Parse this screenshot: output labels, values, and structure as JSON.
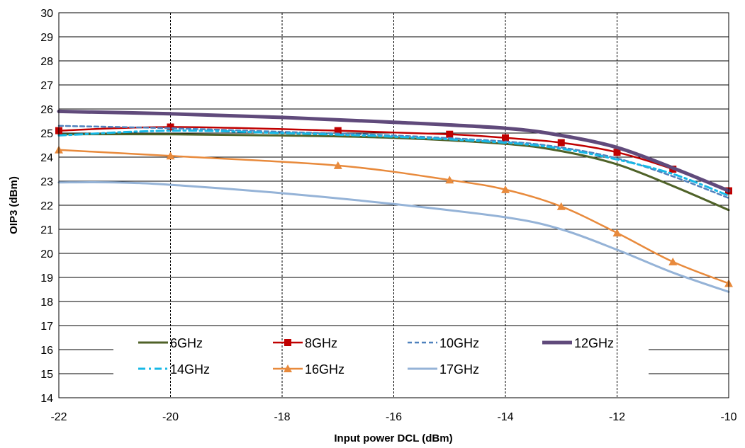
{
  "chart_data": {
    "type": "line",
    "xlabel": "Input power DCL  (dBm)",
    "ylabel": "OIP3  (dBm)",
    "xlim": [
      -22,
      -10
    ],
    "ylim": [
      14,
      30
    ],
    "x_ticks": [
      "-22",
      "-20",
      "-18",
      "-16",
      "-14",
      "-12",
      "-10"
    ],
    "y_ticks": [
      "14",
      "15",
      "16",
      "17",
      "18",
      "19",
      "20",
      "21",
      "22",
      "23",
      "24",
      "25",
      "26",
      "27",
      "28",
      "29",
      "30"
    ],
    "grid": {
      "horizontal": "solid",
      "vertical": "dashed"
    },
    "legend_position": "bottom-inside",
    "series": [
      {
        "name": "6GHz",
        "color": "#4f6228",
        "style": "solid",
        "marker": "none",
        "width": 3,
        "x": [
          -22,
          -20,
          -18,
          -16,
          -14,
          -13,
          -12,
          -11,
          -10
        ],
        "y": [
          24.95,
          24.95,
          24.9,
          24.8,
          24.55,
          24.25,
          23.7,
          22.8,
          21.8
        ]
      },
      {
        "name": "8GHz",
        "color": "#c00000",
        "style": "solid",
        "marker": "square",
        "width": 2.5,
        "x": [
          -22,
          -20,
          -17,
          -15,
          -14,
          -13,
          -12,
          -11,
          -10
        ],
        "y": [
          25.1,
          25.25,
          25.1,
          24.95,
          24.8,
          24.6,
          24.2,
          23.5,
          22.6
        ]
      },
      {
        "name": "10GHz",
        "color": "#4f81bd",
        "style": "dashed",
        "marker": "none",
        "width": 2.5,
        "x": [
          -22,
          -20,
          -18,
          -16,
          -14,
          -13,
          -12,
          -11,
          -10
        ],
        "y": [
          25.3,
          25.2,
          25.05,
          24.9,
          24.65,
          24.4,
          23.95,
          23.2,
          22.3
        ]
      },
      {
        "name": "12GHz",
        "color": "#604a7b",
        "style": "solid",
        "marker": "none",
        "width": 5,
        "x": [
          -22,
          -20,
          -18,
          -16,
          -14,
          -13,
          -12,
          -11,
          -10
        ],
        "y": [
          25.9,
          25.8,
          25.65,
          25.45,
          25.2,
          24.9,
          24.4,
          23.55,
          22.6
        ]
      },
      {
        "name": "14GHz",
        "color": "#17b8e6",
        "style": "dashdot",
        "marker": "none",
        "width": 3,
        "x": [
          -22,
          -20,
          -18,
          -16,
          -14,
          -13,
          -12,
          -11,
          -10
        ],
        "y": [
          24.9,
          25.1,
          25.0,
          24.85,
          24.6,
          24.35,
          23.9,
          23.3,
          22.4
        ]
      },
      {
        "name": "16GHz",
        "color": "#e88a3c",
        "style": "solid",
        "marker": "triangle",
        "width": 2.5,
        "x": [
          -22,
          -20,
          -17,
          -15,
          -14,
          -13,
          -12,
          -11,
          -10
        ],
        "y": [
          24.3,
          24.05,
          23.65,
          23.05,
          22.65,
          21.95,
          20.85,
          19.65,
          18.75
        ]
      },
      {
        "name": "17GHz",
        "color": "#95b3d7",
        "style": "solid",
        "marker": "none",
        "width": 3,
        "x": [
          -22,
          -21,
          -20,
          -18,
          -16,
          -14,
          -13,
          -12,
          -11,
          -10
        ],
        "y": [
          22.95,
          22.95,
          22.85,
          22.5,
          22.05,
          21.5,
          21.0,
          20.15,
          19.2,
          18.4
        ]
      }
    ]
  }
}
